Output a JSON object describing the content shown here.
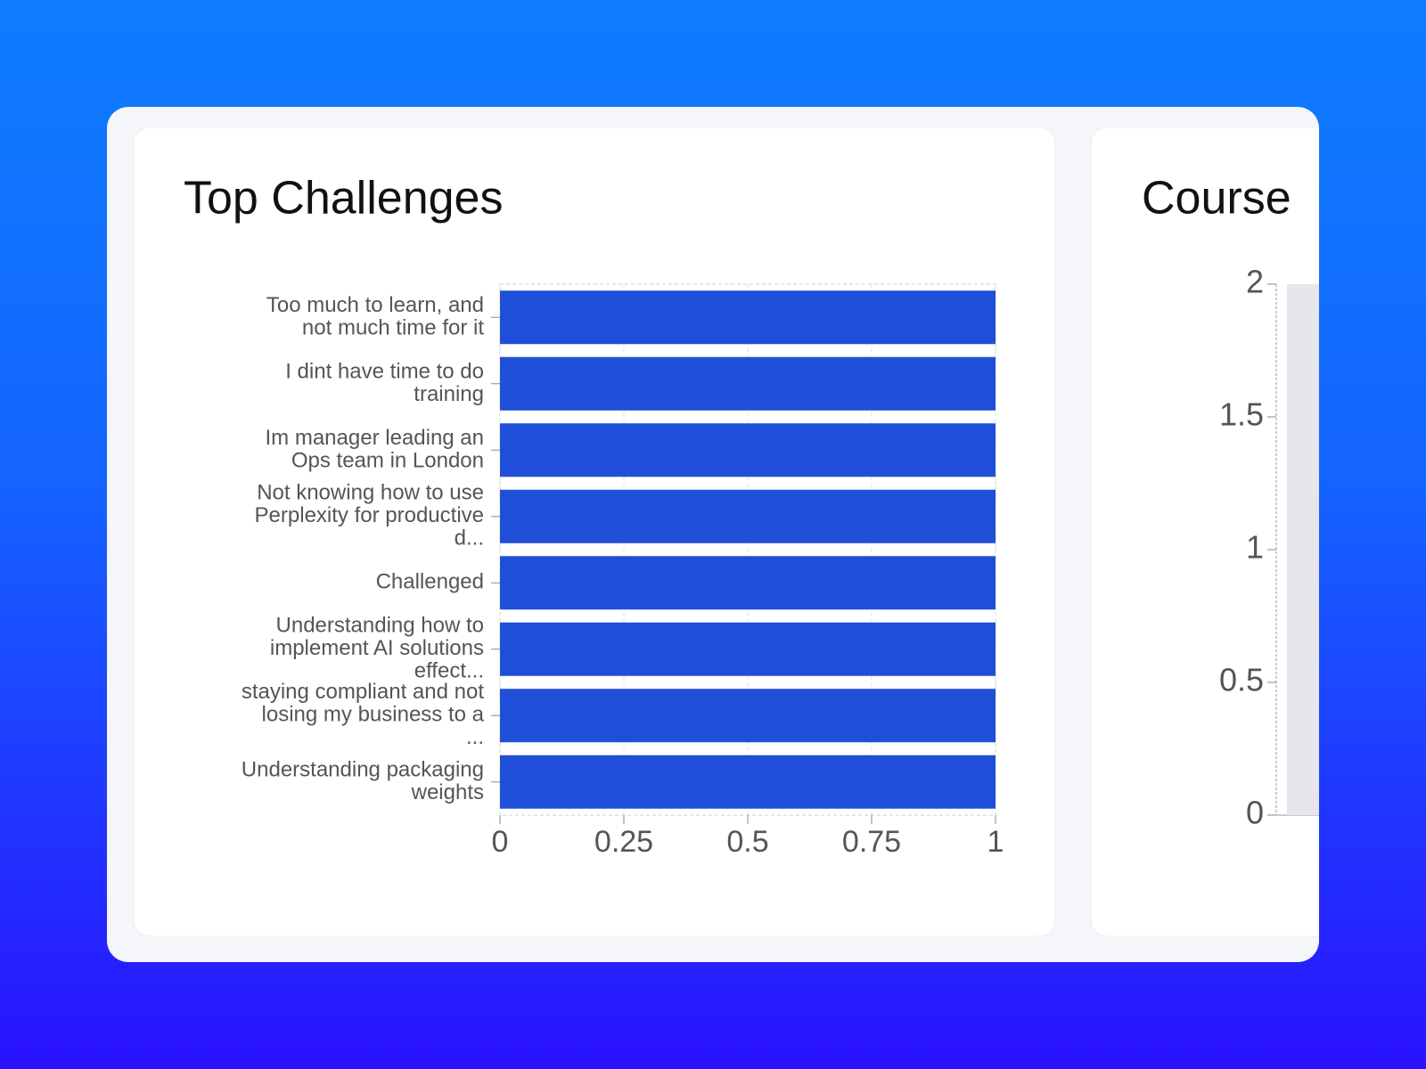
{
  "chart_data": [
    {
      "type": "bar",
      "orientation": "horizontal",
      "title": "Top Challenges",
      "categories": [
        [
          "Too much to learn, and",
          "not much time for it"
        ],
        [
          "I dint have time to do",
          "training"
        ],
        [
          "Im manager leading an",
          "Ops team in London"
        ],
        [
          "Not knowing how to use",
          "Perplexity for productive",
          "d..."
        ],
        [
          "Challenged"
        ],
        [
          "Understanding how to",
          "implement AI solutions",
          "effect..."
        ],
        [
          "staying compliant and not",
          "losing my business to a",
          "..."
        ],
        [
          "Understanding packaging",
          "weights"
        ]
      ],
      "values": [
        1,
        1,
        1,
        1,
        1,
        1,
        1,
        1
      ],
      "color": "#1f4fd8",
      "xlim": [
        0,
        1
      ],
      "xticks": [
        0,
        0.25,
        0.5,
        0.75,
        1
      ],
      "grid": true
    },
    {
      "type": "bar",
      "orientation": "vertical",
      "title": "Course",
      "categories": [
        null
      ],
      "values": [
        2
      ],
      "color": "#e6e6ec",
      "ylim": [
        0,
        2
      ],
      "yticks": [
        0,
        0.5,
        1,
        1.5,
        2
      ],
      "grid": false
    }
  ]
}
